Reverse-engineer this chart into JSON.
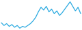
{
  "values": [
    55,
    52,
    54,
    51,
    53,
    50,
    52,
    49,
    51,
    50,
    52,
    54,
    57,
    61,
    67,
    72,
    69,
    73,
    67,
    70,
    65,
    68,
    63,
    66,
    70,
    74,
    78,
    73,
    68,
    72,
    65
  ],
  "line_color": "#28a9e0",
  "bg_color": "#ffffff",
  "linewidth": 0.9
}
